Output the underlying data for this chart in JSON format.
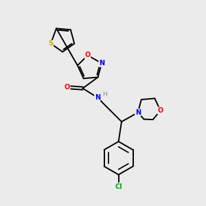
{
  "background_color": "#ebebeb",
  "bond_color": "#000000",
  "atom_colors": {
    "S": "#ccaa00",
    "O": "#ff0000",
    "N": "#0000ee",
    "Cl": "#00aa00",
    "H": "#888888",
    "C": "#000000"
  },
  "figsize": [
    3.0,
    3.0
  ],
  "dpi": 100,
  "lw": 1.4,
  "fontsize": 7.0
}
